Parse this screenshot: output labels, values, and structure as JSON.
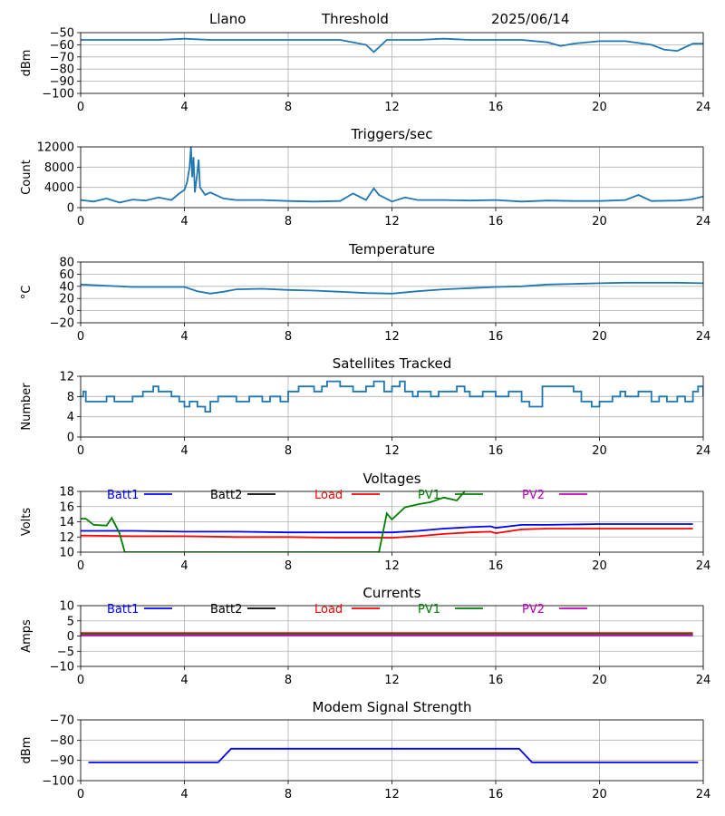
{
  "header": {
    "station": "Llano",
    "label": "Threshold",
    "date": "2025/06/14"
  },
  "colors": {
    "default_line": "#1f77b4",
    "grid": "#b0b0b0",
    "batt1": "#0000ff",
    "batt2": "#000000",
    "load": "#ff0000",
    "pv1": "#008000",
    "pv2": "#bf00bf"
  },
  "chart_data": [
    {
      "id": "threshold",
      "type": "line",
      "title": "",
      "xlabel": "",
      "ylabel": "dBm",
      "xlim": [
        0,
        24
      ],
      "ylim": [
        -100,
        -50
      ],
      "xticks": [
        "0",
        "4",
        "8",
        "12",
        "16",
        "20",
        "24"
      ],
      "yticks": [
        "−50",
        "−60",
        "−70",
        "−80",
        "−90",
        "−100"
      ],
      "grid": true,
      "series": [
        {
          "color_key": "default_line",
          "x": [
            0,
            1,
            2,
            3,
            4,
            5,
            6,
            7,
            8,
            9,
            10,
            10.5,
            11,
            11.3,
            11.5,
            11.8,
            12,
            13,
            14,
            15,
            16,
            17,
            18,
            18.5,
            19,
            20,
            21,
            22,
            22.5,
            23,
            23.3,
            23.6,
            24
          ],
          "y": [
            -56,
            -56,
            -56,
            -56,
            -55,
            -56,
            -56,
            -56,
            -56,
            -56,
            -56,
            -58,
            -60,
            -66,
            -62,
            -56,
            -56,
            -56,
            -55,
            -56,
            -56,
            -56,
            -58,
            -61,
            -59,
            -57,
            -57,
            -60,
            -64,
            -65,
            -62,
            -59,
            -59
          ]
        }
      ]
    },
    {
      "id": "triggers",
      "type": "line",
      "title": "Triggers/sec",
      "xlabel": "",
      "ylabel": "Count",
      "xlim": [
        0,
        24
      ],
      "ylim": [
        0,
        12000
      ],
      "xticks": [
        "0",
        "4",
        "8",
        "12",
        "16",
        "20",
        "24"
      ],
      "yticks": [
        "12000",
        "8000",
        "4000",
        "0"
      ],
      "grid": true,
      "series": [
        {
          "color_key": "default_line",
          "x": [
            0,
            0.5,
            1,
            1.5,
            2,
            2.5,
            3,
            3.5,
            3.8,
            4,
            4.1,
            4.2,
            4.25,
            4.3,
            4.35,
            4.4,
            4.5,
            4.55,
            4.6,
            4.8,
            5,
            5.5,
            6,
            7,
            8,
            9,
            10,
            10.5,
            11,
            11.3,
            11.5,
            12,
            12.5,
            13,
            14,
            15,
            16,
            17,
            18,
            19,
            20,
            21,
            21.5,
            22,
            23,
            23.5,
            24
          ],
          "y": [
            1500,
            1200,
            1800,
            1000,
            1600,
            1400,
            2000,
            1500,
            2800,
            3500,
            5000,
            8000,
            12000,
            6000,
            10000,
            3000,
            7000,
            9500,
            4000,
            2500,
            3000,
            1800,
            1500,
            1500,
            1300,
            1200,
            1300,
            2800,
            1500,
            3800,
            2500,
            1200,
            2000,
            1500,
            1500,
            1400,
            1500,
            1200,
            1400,
            1300,
            1300,
            1500,
            2500,
            1300,
            1400,
            1600,
            2200
          ]
        }
      ]
    },
    {
      "id": "temperature",
      "type": "line",
      "title": "Temperature",
      "xlabel": "",
      "ylabel": "°C",
      "xlim": [
        0,
        24
      ],
      "ylim": [
        -20,
        80
      ],
      "xticks": [
        "0",
        "4",
        "8",
        "12",
        "16",
        "20",
        "24"
      ],
      "yticks": [
        "80",
        "60",
        "40",
        "20",
        "0",
        "−20"
      ],
      "grid": true,
      "series": [
        {
          "color_key": "default_line",
          "x": [
            0,
            1,
            2,
            3,
            4,
            4.5,
            5,
            5.5,
            6,
            7,
            8,
            9,
            10,
            11,
            12,
            13,
            14,
            15,
            16,
            17,
            18,
            19,
            20,
            21,
            22,
            23,
            24
          ],
          "y": [
            43,
            41,
            39,
            39,
            39,
            32,
            28,
            31,
            35,
            36,
            34,
            33,
            31,
            29,
            28,
            32,
            35,
            37,
            39,
            40,
            43,
            44,
            45,
            46,
            46,
            46,
            45
          ]
        }
      ]
    },
    {
      "id": "satellites",
      "type": "line",
      "title": "Satellites Tracked",
      "xlabel": "",
      "ylabel": "Number",
      "xlim": [
        0,
        24
      ],
      "ylim": [
        0,
        12
      ],
      "xticks": [
        "0",
        "4",
        "8",
        "12",
        "16",
        "20",
        "24"
      ],
      "yticks": [
        "12",
        "8",
        "4",
        "0"
      ],
      "grid": true,
      "series": [
        {
          "color_key": "default_line",
          "step": true,
          "x": [
            0,
            0.1,
            0.2,
            1,
            1.3,
            2,
            2.4,
            2.8,
            3,
            3.5,
            3.8,
            4,
            4.2,
            4.5,
            4.8,
            5,
            5.3,
            6,
            6.5,
            7,
            7.3,
            7.7,
            8,
            8.4,
            9,
            9.3,
            9.5,
            10,
            10.5,
            11,
            11.3,
            11.7,
            12,
            12.3,
            12.5,
            12.8,
            13,
            13.5,
            13.8,
            14,
            14.5,
            14.8,
            15,
            15.5,
            16,
            16.5,
            17,
            17.3,
            17.8,
            19,
            19.3,
            19.7,
            20,
            20.5,
            20.8,
            21,
            21.5,
            22,
            22.3,
            22.6,
            23,
            23.3,
            23.6,
            23.8,
            24
          ],
          "y": [
            8,
            9,
            7,
            8,
            7,
            8,
            9,
            10,
            9,
            8,
            7,
            6,
            7,
            6,
            5,
            7,
            8,
            7,
            8,
            7,
            8,
            7,
            9,
            10,
            9,
            10,
            11,
            10,
            9,
            10,
            11,
            9,
            10,
            11,
            9,
            8,
            9,
            8,
            9,
            9,
            10,
            9,
            8,
            9,
            8,
            9,
            7,
            6,
            10,
            9,
            7,
            6,
            7,
            8,
            9,
            8,
            9,
            7,
            8,
            7,
            8,
            7,
            9,
            10,
            8
          ]
        }
      ]
    },
    {
      "id": "voltages",
      "type": "line",
      "title": "Voltages",
      "xlabel": "",
      "ylabel": "Volts",
      "xlim": [
        0,
        24
      ],
      "ylim": [
        10,
        18
      ],
      "xticks": [
        "0",
        "4",
        "8",
        "12",
        "16",
        "20",
        "24"
      ],
      "yticks": [
        "18",
        "16",
        "14",
        "12",
        "10"
      ],
      "grid": true,
      "legend": [
        "Batt1",
        "Batt2",
        "Load",
        "PV1",
        "PV2"
      ],
      "series": [
        {
          "name": "Batt1",
          "color_key": "batt1",
          "x": [
            0,
            2,
            4,
            6,
            8,
            10,
            12,
            13,
            14,
            15,
            15.8,
            16,
            17,
            18,
            20,
            22,
            23.6
          ],
          "y": [
            12.8,
            12.8,
            12.7,
            12.7,
            12.6,
            12.6,
            12.6,
            12.8,
            13.1,
            13.3,
            13.4,
            13.2,
            13.6,
            13.6,
            13.7,
            13.7,
            13.7
          ]
        },
        {
          "name": "Batt2",
          "color_key": "batt2",
          "x": [],
          "y": []
        },
        {
          "name": "Load",
          "color_key": "load",
          "x": [
            0,
            2,
            4,
            6,
            8,
            10,
            12,
            13,
            14,
            15,
            15.8,
            16,
            17,
            18,
            20,
            22,
            23.6
          ],
          "y": [
            12.2,
            12.1,
            12.1,
            12.0,
            12.0,
            11.9,
            11.9,
            12.1,
            12.4,
            12.6,
            12.7,
            12.5,
            13.0,
            13.1,
            13.1,
            13.1,
            13.1
          ]
        },
        {
          "name": "PV1",
          "color_key": "pv1",
          "x": [
            0,
            0.2,
            0.5,
            1,
            1.2,
            1.5,
            1.7,
            11.5,
            11.8,
            12,
            12.5,
            13,
            13.5,
            14,
            14.5,
            14.8
          ],
          "y": [
            14.4,
            14.4,
            13.6,
            13.5,
            14.5,
            12.5,
            10,
            10,
            15.1,
            14.3,
            15.9,
            16.3,
            16.6,
            17.2,
            16.8,
            18
          ]
        },
        {
          "name": "PV2",
          "color_key": "pv2",
          "x": [],
          "y": []
        }
      ]
    },
    {
      "id": "currents",
      "type": "line",
      "title": "Currents",
      "xlabel": "",
      "ylabel": "Amps",
      "xlim": [
        0,
        24
      ],
      "ylim": [
        -10,
        10
      ],
      "xticks": [
        "0",
        "4",
        "8",
        "12",
        "16",
        "20",
        "24"
      ],
      "yticks": [
        "10",
        "5",
        "0",
        "−5",
        "−10"
      ],
      "grid": true,
      "legend": [
        "Batt1",
        "Batt2",
        "Load",
        "PV1",
        "PV2"
      ],
      "series": [
        {
          "name": "Batt1",
          "color_key": "batt1",
          "x": [],
          "y": []
        },
        {
          "name": "Batt2",
          "color_key": "batt2",
          "x": [],
          "y": []
        },
        {
          "name": "Load",
          "color_key": "load",
          "x": [
            0,
            4,
            8,
            12,
            16,
            20,
            23.6
          ],
          "y": [
            1.0,
            1.0,
            1.0,
            1.0,
            1.0,
            1.0,
            1.0
          ]
        },
        {
          "name": "PV1",
          "color_key": "pv1",
          "x": [
            0,
            4,
            8,
            12,
            16,
            20,
            23.6
          ],
          "y": [
            0.6,
            0.6,
            0.6,
            0.6,
            0.6,
            0.6,
            0.6
          ]
        },
        {
          "name": "PV2",
          "color_key": "pv2",
          "x": [
            0,
            4,
            8,
            12,
            16,
            20,
            23.6
          ],
          "y": [
            0.2,
            0.2,
            0.2,
            0.2,
            0.2,
            0.2,
            0.2
          ]
        }
      ]
    },
    {
      "id": "modem",
      "type": "line",
      "title": "Modem Signal Strength",
      "xlabel": "",
      "ylabel": "dBm",
      "xlim": [
        0,
        24
      ],
      "ylim": [
        -110,
        -70
      ],
      "xticks": [
        "0",
        "4",
        "8",
        "12",
        "16",
        "20",
        "24"
      ],
      "yticks": [
        "−70",
        "−80",
        "−90",
        "−100"
      ],
      "grid": true,
      "series": [
        {
          "color_key": "batt1",
          "x": [
            0.3,
            5.3,
            5.8,
            16.9,
            17.4,
            23.8
          ],
          "y": [
            -98,
            -98,
            -89,
            -89,
            -98,
            -98
          ]
        }
      ]
    }
  ]
}
